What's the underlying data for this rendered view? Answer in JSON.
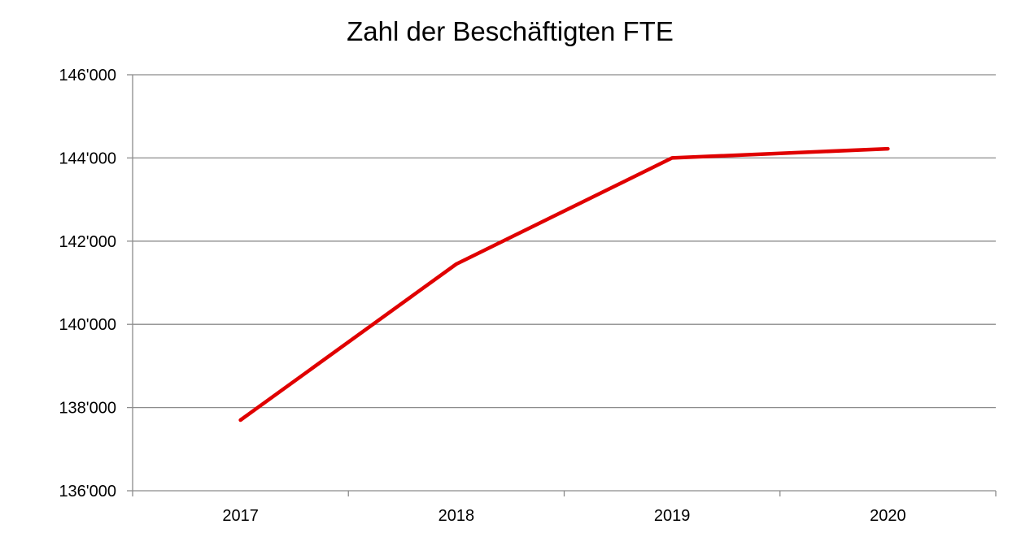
{
  "chart_data": {
    "type": "line",
    "title": "Zahl der Beschäftigten FTE",
    "xlabel": "",
    "ylabel": "",
    "categories": [
      "2017",
      "2018",
      "2019",
      "2020"
    ],
    "series": [
      {
        "values": [
          137700,
          141450,
          144000,
          144220
        ],
        "color": "#e00000"
      }
    ],
    "ylim": [
      136000,
      146000
    ],
    "yticks": [
      136000,
      138000,
      140000,
      142000,
      144000,
      146000
    ],
    "ytick_labels": [
      "136'000",
      "138'000",
      "140'000",
      "142'000",
      "144'000",
      "146'000"
    ],
    "grid": true,
    "legend": "none"
  }
}
